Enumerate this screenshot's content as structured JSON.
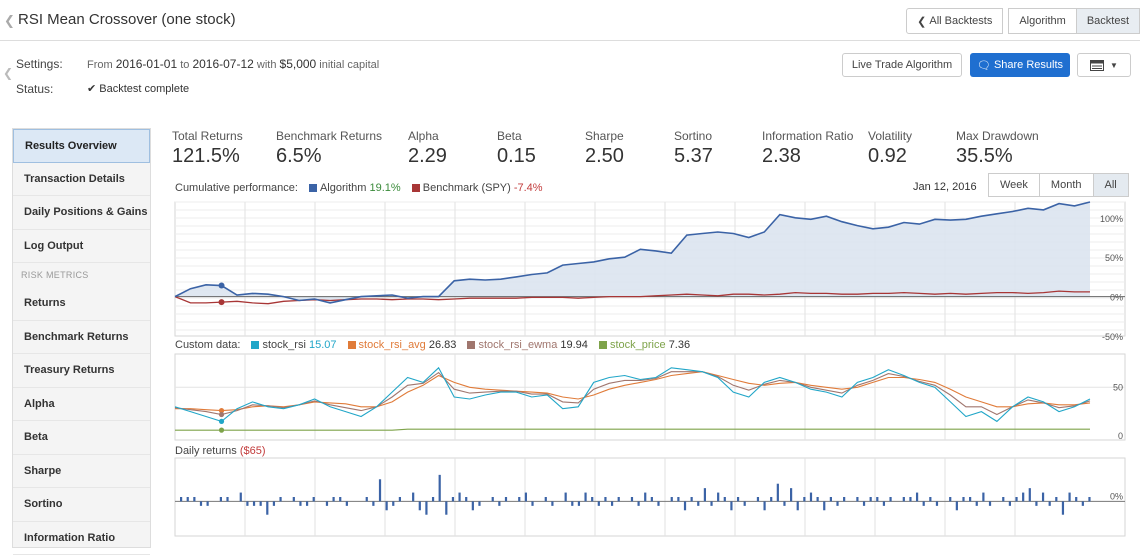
{
  "header": {
    "title": "RSI Mean Crossover (one stock)",
    "buttons": [
      "All Backtests",
      "Algorithm",
      "Backtest"
    ]
  },
  "settings": {
    "settings_label": "Settings:",
    "from_word": "From",
    "start_date": "2016-01-01",
    "to_word": "to",
    "end_date": "2016-07-12",
    "with_word": "with",
    "capital": "$5,000",
    "capital_suffix": "initial capital",
    "status_label": "Status:",
    "status_value": "Backtest complete"
  },
  "actions": {
    "live_trade": "Live Trade Algorithm",
    "share": "Share Results"
  },
  "sidebar": {
    "items": [
      "Results Overview",
      "Transaction Details",
      "Daily Positions & Gains",
      "Log Output"
    ],
    "risk_header": "RISK METRICS",
    "risk_items": [
      "Returns",
      "Benchmark Returns",
      "Treasury Returns",
      "Alpha",
      "Beta",
      "Sharpe",
      "Sortino",
      "Information Ratio"
    ]
  },
  "metrics": [
    {
      "label": "Total Returns",
      "value": "121.5%"
    },
    {
      "label": "Benchmark Returns",
      "value": "6.5%"
    },
    {
      "label": "Alpha",
      "value": "2.29"
    },
    {
      "label": "Beta",
      "value": "0.15"
    },
    {
      "label": "Sharpe",
      "value": "2.50"
    },
    {
      "label": "Sortino",
      "value": "5.37"
    },
    {
      "label": "Information Ratio",
      "value": "2.38"
    },
    {
      "label": "Volatility",
      "value": "0.92"
    },
    {
      "label": "Max Drawdown",
      "value": "35.5%"
    }
  ],
  "performance": {
    "label": "Cumulative performance:",
    "algorithm_name": "Algorithm",
    "algorithm_value": "19.1%",
    "benchmark_name": "Benchmark (SPY)",
    "benchmark_value": "-7.4%",
    "date": "Jan 12, 2016",
    "ranges": [
      "Week",
      "Month",
      "All"
    ]
  },
  "custom": {
    "label": "Custom data:",
    "series": [
      {
        "name": "stock_rsi",
        "value": "15.07",
        "color": "#21a6c8"
      },
      {
        "name": "stock_rsi_avg",
        "value": "26.83",
        "color": "#e07b39"
      },
      {
        "name": "stock_rsi_ewma",
        "value": "19.94",
        "color": "#a0766e"
      },
      {
        "name": "stock_price",
        "value": "7.36",
        "color": "#7ea34a"
      }
    ]
  },
  "daily": {
    "label": "Daily returns",
    "value": "($65)"
  },
  "colors": {
    "algorithm": "#3b63a6",
    "benchmark": "#a83636",
    "accent": "#1f6fd0"
  },
  "chart_data": [
    {
      "type": "area",
      "title": "Cumulative performance",
      "yticks": [
        "100%",
        "50%",
        "0%",
        "-50%"
      ],
      "ylim": [
        -50,
        120
      ],
      "series": [
        {
          "name": "Algorithm",
          "values": [
            0,
            10,
            15,
            14,
            2,
            4,
            3,
            0,
            -5,
            -3,
            -8,
            -4,
            0,
            1,
            2,
            -2,
            0,
            0,
            20,
            22,
            21,
            22,
            25,
            28,
            30,
            40,
            42,
            44,
            48,
            50,
            60,
            58,
            55,
            78,
            80,
            82,
            80,
            75,
            82,
            104,
            100,
            98,
            102,
            95,
            90,
            86,
            88,
            94,
            92,
            98,
            97,
            98,
            102,
            105,
            108,
            112,
            110,
            118,
            115,
            120
          ]
        },
        {
          "name": "Benchmark (SPY)",
          "values": [
            0,
            -8,
            -8,
            -7,
            -6,
            -8,
            -9,
            -6,
            -5,
            -4,
            -5,
            -4,
            -3,
            -3,
            -4,
            -3,
            -3,
            -4,
            -3,
            -2,
            -2,
            -2,
            -2,
            -1,
            -1,
            -1,
            -2,
            -1,
            0,
            0,
            0,
            1,
            2,
            3,
            2,
            1,
            3,
            3,
            2,
            3,
            5,
            4,
            4,
            3,
            3,
            4,
            4,
            5,
            4,
            3,
            4,
            3,
            4,
            5,
            5,
            4,
            5,
            7,
            6,
            6
          ]
        }
      ]
    },
    {
      "type": "line",
      "title": "Custom data",
      "yticks": [
        "50",
        "0"
      ],
      "ylim": [
        0,
        80
      ],
      "series": [
        {
          "name": "stock_rsi",
          "values": [
            30,
            25,
            20,
            15,
            28,
            35,
            30,
            28,
            32,
            38,
            30,
            25,
            20,
            30,
            45,
            60,
            55,
            70,
            40,
            38,
            42,
            45,
            45,
            40,
            42,
            28,
            30,
            55,
            60,
            62,
            58,
            60,
            70,
            68,
            66,
            60,
            45,
            40,
            55,
            60,
            55,
            48,
            45,
            40,
            55,
            60,
            68,
            62,
            55,
            50,
            35,
            20,
            25,
            15,
            30,
            40,
            35,
            25,
            30,
            38
          ]
        },
        {
          "name": "stock_rsi_avg",
          "values": [
            28,
            28,
            27,
            26,
            27,
            30,
            31,
            30,
            32,
            35,
            34,
            33,
            30,
            30,
            35,
            45,
            52,
            62,
            55,
            50,
            48,
            47,
            46,
            45,
            44,
            40,
            38,
            42,
            48,
            52,
            55,
            58,
            62,
            64,
            66,
            62,
            58,
            54,
            52,
            54,
            55,
            52,
            50,
            48,
            50,
            55,
            60,
            60,
            58,
            55,
            48,
            40,
            35,
            30,
            30,
            33,
            34,
            32,
            32,
            34
          ]
        },
        {
          "name": "stock_rsi_ewma",
          "values": [
            29,
            27,
            25,
            22,
            26,
            32,
            31,
            29,
            32,
            36,
            32,
            29,
            26,
            30,
            40,
            52,
            54,
            65,
            48,
            44,
            45,
            46,
            46,
            43,
            43,
            35,
            34,
            48,
            54,
            57,
            57,
            59,
            66,
            66,
            66,
            61,
            52,
            47,
            53,
            57,
            55,
            50,
            47,
            44,
            52,
            57,
            64,
            61,
            56,
            52,
            42,
            30,
            30,
            22,
            30,
            37,
            34,
            29,
            31,
            36
          ]
        },
        {
          "name": "stock_price",
          "values": [
            6,
            6,
            6,
            6,
            6,
            6,
            6,
            6,
            6,
            6,
            6,
            6,
            6,
            6,
            6,
            7,
            7,
            7,
            7,
            7,
            7,
            7,
            7,
            7,
            7,
            7,
            7,
            7,
            7,
            7,
            7,
            7,
            7,
            7,
            7,
            7,
            7,
            7,
            7,
            7,
            7,
            7,
            7,
            7,
            7,
            7,
            7,
            7,
            7,
            7,
            7,
            7,
            7,
            7,
            7,
            7,
            7,
            7,
            7,
            7
          ]
        }
      ]
    },
    {
      "type": "bar",
      "title": "Daily returns",
      "yticks": [
        "0%"
      ],
      "ylim": [
        -6,
        8
      ],
      "values": [
        1,
        1,
        1,
        -1,
        -1,
        0,
        1,
        1,
        0,
        2,
        -1,
        -1,
        -1,
        -3,
        -1,
        1,
        0,
        1,
        -1,
        -1,
        1,
        0,
        -1,
        1,
        1,
        -1,
        0,
        0,
        1,
        -1,
        5,
        -2,
        -1,
        1,
        0,
        2,
        -2,
        -3,
        1,
        6,
        -3,
        1,
        2,
        1,
        -2,
        -1,
        0,
        1,
        -1,
        1,
        0,
        1,
        2,
        -1,
        0,
        1,
        -1,
        0,
        2,
        -1,
        -1,
        2,
        1,
        -1,
        1,
        -1,
        1,
        0,
        1,
        -1,
        2,
        1,
        -1,
        0,
        1,
        1,
        -2,
        1,
        -1,
        3,
        -1,
        2,
        1,
        -2,
        1,
        -1,
        0,
        1,
        -2,
        1,
        4,
        -1,
        3,
        -2,
        1,
        2,
        1,
        -2,
        1,
        -1,
        1,
        0,
        1,
        -1,
        1,
        1,
        -1,
        1,
        0,
        1,
        1,
        2,
        -1,
        1,
        -1,
        0,
        1,
        -2,
        1,
        1,
        -1,
        2,
        -1,
        0,
        1,
        -1,
        1,
        2,
        3,
        -1,
        2,
        -1,
        1,
        -3,
        2,
        1,
        -1,
        1
      ]
    }
  ]
}
